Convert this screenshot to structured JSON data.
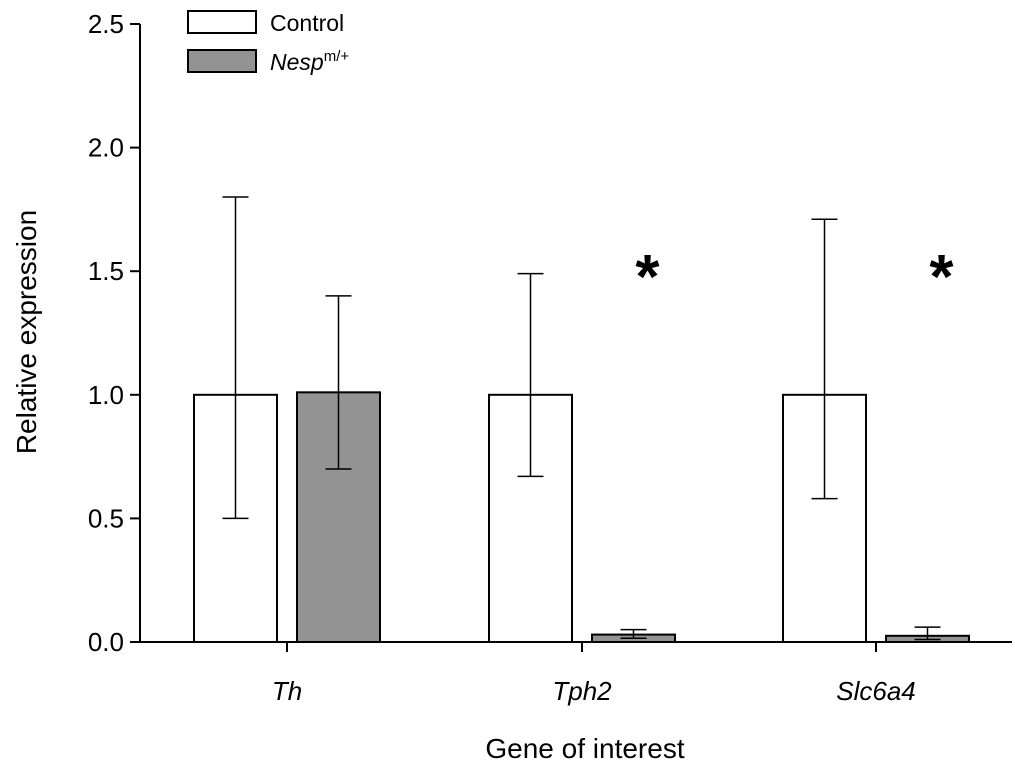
{
  "chart_data": {
    "type": "bar",
    "categories": [
      "Th",
      "Tph2",
      "Slc6a4"
    ],
    "series": [
      {
        "name": "Control",
        "name_superscript": "",
        "color": "#ffffff",
        "values": [
          1.0,
          1.0,
          1.0
        ],
        "error_low": [
          0.5,
          0.67,
          0.58
        ],
        "error_high": [
          1.8,
          1.49,
          1.71
        ]
      },
      {
        "name": "Nesp",
        "name_superscript": "m/+",
        "color": "#939393",
        "values": [
          1.01,
          0.03,
          0.025
        ],
        "error_low": [
          0.7,
          0.015,
          0.01
        ],
        "error_high": [
          1.4,
          0.05,
          0.06
        ]
      }
    ],
    "significance": [
      {
        "category": "Tph2",
        "label": "*"
      },
      {
        "category": "Slc6a4",
        "label": "*"
      }
    ],
    "yticks": [
      "0.0",
      "0.5",
      "1.0",
      "1.5",
      "2.0",
      "2.5"
    ],
    "ylim": [
      0,
      2.5
    ],
    "xlabel": "Gene of interest",
    "ylabel": "Relative expression",
    "legend_position": "top-left",
    "grid": false
  }
}
